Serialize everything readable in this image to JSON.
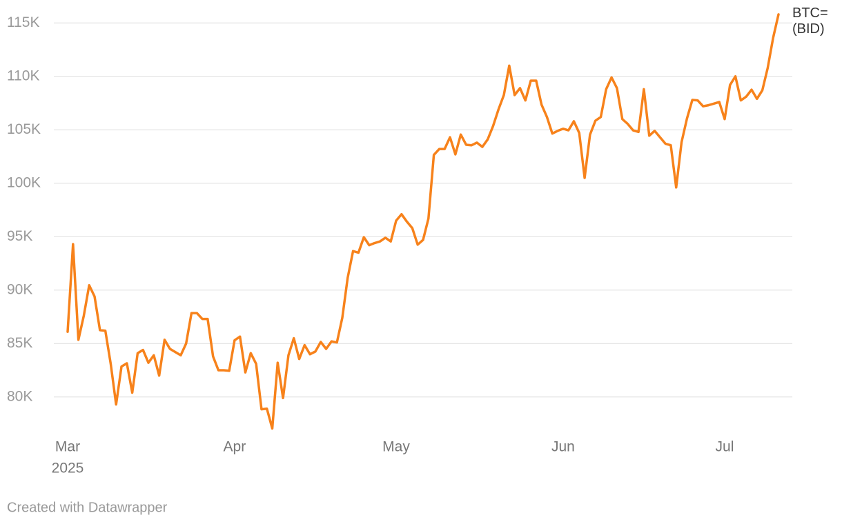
{
  "chart_data": {
    "type": "line",
    "categories": [
      "Mar",
      null,
      null,
      null,
      null,
      null,
      null,
      null,
      null,
      null,
      null,
      null,
      null,
      null,
      null,
      null,
      null,
      null,
      null,
      null,
      null,
      null,
      null,
      null,
      null,
      null,
      null,
      null,
      null,
      null,
      null,
      "Apr",
      null,
      null,
      null,
      null,
      null,
      null,
      null,
      null,
      null,
      null,
      null,
      null,
      null,
      null,
      null,
      null,
      null,
      null,
      null,
      null,
      null,
      null,
      null,
      null,
      null,
      null,
      null,
      null,
      null,
      "May",
      null,
      null,
      null,
      null,
      null,
      null,
      null,
      null,
      null,
      null,
      null,
      null,
      null,
      null,
      null,
      null,
      null,
      null,
      null,
      null,
      null,
      null,
      null,
      null,
      null,
      null,
      null,
      null,
      null,
      null,
      "Jun",
      null,
      null,
      null,
      null,
      null,
      null,
      null,
      null,
      null,
      null,
      null,
      null,
      null,
      null,
      null,
      null,
      null,
      null,
      null,
      null,
      null,
      null,
      null,
      null,
      null,
      null,
      null,
      null,
      null,
      "Jul",
      null,
      null,
      null,
      null,
      null,
      null,
      null,
      null,
      null,
      null
    ],
    "year_label": "2025",
    "series": [
      {
        "name": "BTC= (BID)",
        "color": "#f7821b",
        "values": [
          86100,
          94300,
          85350,
          87600,
          90450,
          89400,
          86250,
          86200,
          83100,
          79300,
          82850,
          83150,
          80400,
          84100,
          84400,
          83200,
          83900,
          82000,
          85350,
          84500,
          84200,
          83900,
          85000,
          87850,
          87850,
          87300,
          87300,
          83800,
          82500,
          82500,
          82450,
          85300,
          85650,
          82300,
          84100,
          83100,
          78850,
          78900,
          77050,
          83200,
          79900,
          83900,
          85500,
          83550,
          84850,
          84000,
          84250,
          85150,
          84500,
          85200,
          85100,
          87400,
          91150,
          93650,
          93500,
          94950,
          94200,
          94400,
          94550,
          94900,
          94550,
          96500,
          97100,
          96400,
          95800,
          94250,
          94700,
          96700,
          102650,
          103200,
          103200,
          104300,
          102700,
          104550,
          103600,
          103550,
          103800,
          103400,
          104100,
          105350,
          106900,
          108250,
          111000,
          108250,
          108900,
          107750,
          109600,
          109600,
          107350,
          106200,
          104650,
          104900,
          105100,
          104950,
          105800,
          104700,
          100500,
          104550,
          105850,
          106200,
          108800,
          109900,
          108900,
          106000,
          105550,
          104950,
          104800,
          108800,
          104450,
          104900,
          104300,
          103700,
          103550,
          99600,
          103850,
          106050,
          107800,
          107750,
          107200,
          107300,
          107450,
          107600,
          106000,
          109200,
          110000,
          107750,
          108100,
          108750,
          107900,
          108700,
          110800,
          113600,
          115800
        ]
      }
    ],
    "ylim": [
      76500,
      116500
    ],
    "yticks": [
      {
        "value": 80000,
        "label": "80K"
      },
      {
        "value": 85000,
        "label": "85K"
      },
      {
        "value": 90000,
        "label": "90K"
      },
      {
        "value": 95000,
        "label": "95K"
      },
      {
        "value": 100000,
        "label": "100K"
      },
      {
        "value": 105000,
        "label": "105K"
      },
      {
        "value": 110000,
        "label": "110K"
      },
      {
        "value": 115000,
        "label": "115K"
      }
    ],
    "grid": true
  },
  "footer": "Created with Datawrapper"
}
